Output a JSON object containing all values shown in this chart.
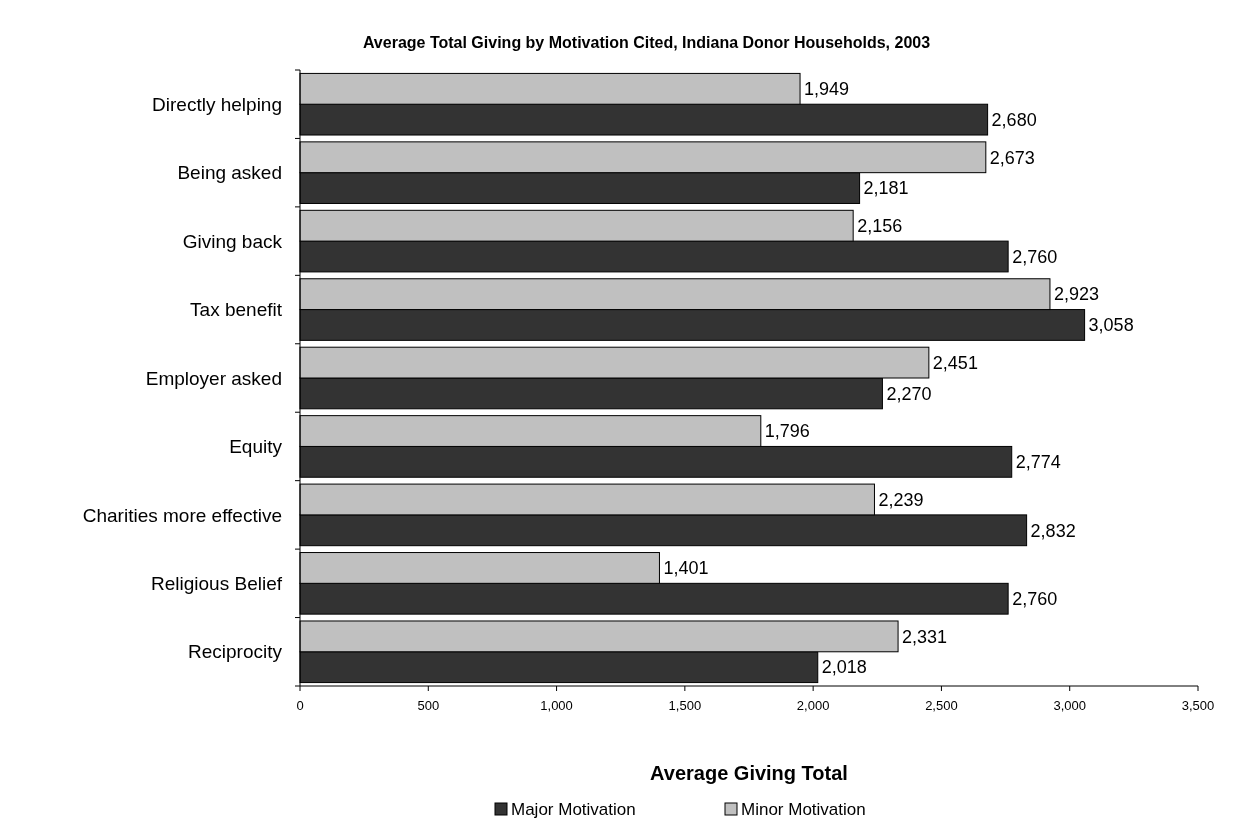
{
  "chart_data": {
    "type": "bar",
    "orientation": "horizontal",
    "title": "Average Total Giving by Motivation Cited, Indiana Donor Households, 2003",
    "xlabel": "Average Giving Total",
    "categories": [
      "Directly helping",
      "Being asked",
      "Giving back",
      "Tax benefit",
      "Employer asked",
      "Equity",
      "Charities more effective",
      "Religious Belief",
      "Reciprocity"
    ],
    "series": [
      {
        "name": "Major Motivation",
        "color": "#333333",
        "values": [
          2680,
          2181,
          2760,
          3058,
          2270,
          2774,
          2832,
          2760,
          2018
        ],
        "value_labels": [
          "2,680",
          "2,181",
          "2,760",
          "3,058",
          "2,270",
          "2,774",
          "2,832",
          "2,760",
          "2,018"
        ]
      },
      {
        "name": "Minor Motivation",
        "color": "#c0c0c0",
        "values": [
          1949,
          2673,
          2156,
          2923,
          2451,
          1796,
          2239,
          1401,
          2331
        ],
        "value_labels": [
          "1,949",
          "2,673",
          "2,156",
          "2,923",
          "2,451",
          "1,796",
          "2,239",
          "1,401",
          "2,331"
        ]
      }
    ],
    "xlim": [
      0,
      3500
    ],
    "xticks": [
      {
        "value": 0,
        "label": "0"
      },
      {
        "value": 500,
        "label": "500"
      },
      {
        "value": 1000,
        "label": "1,000"
      },
      {
        "value": 1500,
        "label": "1,500"
      },
      {
        "value": 2000,
        "label": "2,000"
      },
      {
        "value": 2500,
        "label": "2,500"
      },
      {
        "value": 3000,
        "label": "3,000"
      },
      {
        "value": 3500,
        "label": "3,500"
      }
    ],
    "grid": false,
    "legend": "bottom"
  }
}
